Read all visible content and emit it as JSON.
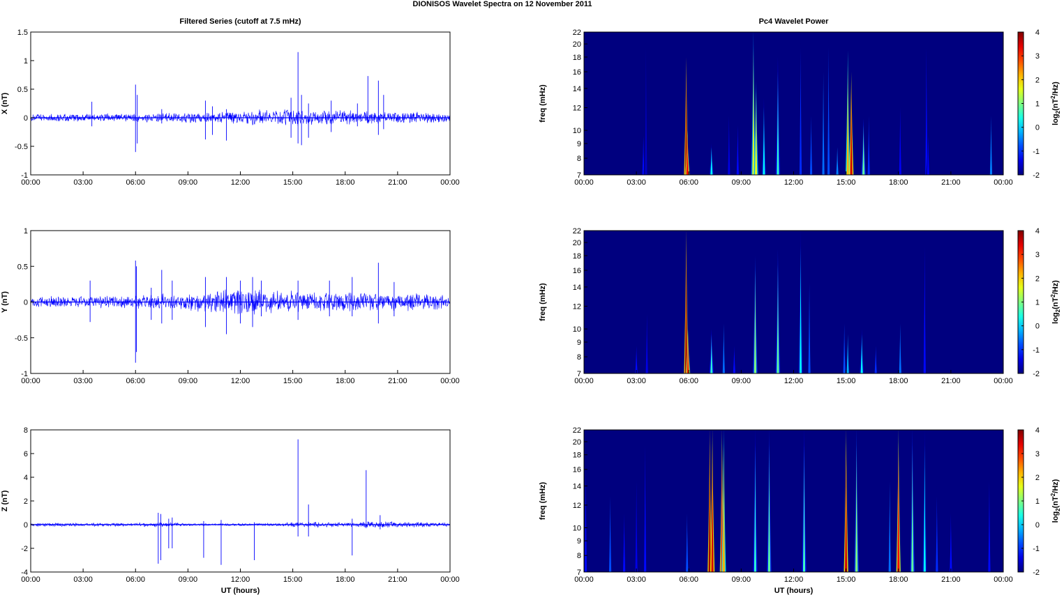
{
  "figure": {
    "title": "DIONISOS Wavelet Spectra on 12 November  2011",
    "left_title": "Filtered Series (cutoff at 7.5 mHz)",
    "right_title": "Pc4 Wavelet Power",
    "xlabel": "UT (hours)"
  },
  "chart_data": [
    {
      "type": "line",
      "panel": "X",
      "ylabel": "X (nT)",
      "xlim_hours": [
        0,
        24
      ],
      "ylim": [
        -1,
        1.5
      ],
      "yticks": [
        -1,
        -0.5,
        0,
        0.5,
        1,
        1.5
      ],
      "yticklabels": [
        "-1",
        "-0.5",
        "0",
        "0.5",
        "1",
        "1.5"
      ],
      "xticklabels": [
        "00:00",
        "03:00",
        "06:00",
        "09:00",
        "12:00",
        "15:00",
        "18:00",
        "21:00",
        "00:00"
      ],
      "series_color": "#0000ff",
      "noise_envelope": [
        [
          0,
          0.06
        ],
        [
          5.5,
          0.07
        ],
        [
          10,
          0.09
        ],
        [
          12,
          0.12
        ],
        [
          15,
          0.14
        ],
        [
          16,
          0.12
        ],
        [
          18,
          0.12
        ],
        [
          20,
          0.1
        ],
        [
          24,
          0.08
        ]
      ],
      "spikes": [
        [
          3.5,
          0.28,
          -0.15
        ],
        [
          6.0,
          0.58,
          -0.6
        ],
        [
          6.1,
          0.4,
          -0.45
        ],
        [
          7.5,
          0.15,
          -0.1
        ],
        [
          10.0,
          0.3,
          -0.38
        ],
        [
          10.4,
          0.2,
          -0.3
        ],
        [
          11.2,
          0.15,
          -0.4
        ],
        [
          14.9,
          0.35,
          -0.35
        ],
        [
          15.3,
          1.15,
          -0.45
        ],
        [
          15.5,
          0.4,
          -0.48
        ],
        [
          15.9,
          0.25,
          -0.35
        ],
        [
          17.2,
          0.3,
          -0.25
        ],
        [
          18.7,
          0.25,
          -0.15
        ],
        [
          19.3,
          0.73,
          -0.1
        ],
        [
          19.9,
          0.65,
          -0.3
        ],
        [
          20.2,
          0.4,
          -0.2
        ]
      ]
    },
    {
      "type": "line",
      "panel": "Y",
      "ylabel": "Y (nT)",
      "xlim_hours": [
        0,
        24
      ],
      "ylim": [
        -1,
        1
      ],
      "yticks": [
        -1,
        -0.5,
        0,
        0.5,
        1
      ],
      "yticklabels": [
        "-1",
        "-0.5",
        "0",
        "0.5",
        "1"
      ],
      "xticklabels": [
        "00:00",
        "03:00",
        "06:00",
        "09:00",
        "12:00",
        "15:00",
        "18:00",
        "21:00",
        "00:00"
      ],
      "series_color": "#0000ff",
      "noise_envelope": [
        [
          0,
          0.07
        ],
        [
          5.5,
          0.08
        ],
        [
          10,
          0.13
        ],
        [
          12,
          0.18
        ],
        [
          14,
          0.14
        ],
        [
          18,
          0.13
        ],
        [
          20,
          0.12
        ],
        [
          24,
          0.09
        ]
      ],
      "spikes": [
        [
          3.4,
          0.3,
          -0.28
        ],
        [
          6.0,
          0.58,
          -0.85
        ],
        [
          6.05,
          0.5,
          -0.7
        ],
        [
          6.9,
          0.2,
          -0.25
        ],
        [
          7.5,
          0.45,
          -0.3
        ],
        [
          8.1,
          0.3,
          -0.25
        ],
        [
          10.0,
          0.35,
          -0.35
        ],
        [
          11.2,
          0.35,
          -0.45
        ],
        [
          12.0,
          0.3,
          -0.3
        ],
        [
          12.7,
          0.35,
          -0.35
        ],
        [
          13.2,
          0.3,
          -0.2
        ],
        [
          15.3,
          0.3,
          -0.25
        ],
        [
          17.1,
          0.3,
          -0.2
        ],
        [
          18.4,
          0.35,
          -0.2
        ],
        [
          19.9,
          0.55,
          -0.3
        ],
        [
          20.8,
          0.28,
          -0.2
        ]
      ]
    },
    {
      "type": "line",
      "panel": "Z",
      "ylabel": "Z (nT)",
      "xlim_hours": [
        0,
        24
      ],
      "ylim": [
        -4,
        8
      ],
      "yticks": [
        -4,
        -2,
        0,
        2,
        4,
        6,
        8
      ],
      "yticklabels": [
        "-4",
        "-2",
        "0",
        "2",
        "4",
        "6",
        "8"
      ],
      "xticklabels": [
        "00:00",
        "03:00",
        "06:00",
        "09:00",
        "12:00",
        "15:00",
        "18:00",
        "21:00",
        "00:00"
      ],
      "series_color": "#0000ff",
      "noise_envelope": [
        [
          0,
          0.15
        ],
        [
          6,
          0.12
        ],
        [
          7.3,
          0.2
        ],
        [
          9,
          0.1
        ],
        [
          14,
          0.1
        ],
        [
          15,
          0.2
        ],
        [
          18,
          0.2
        ],
        [
          20,
          0.25
        ],
        [
          24,
          0.15
        ]
      ],
      "spikes": [
        [
          7.3,
          1.0,
          -3.3
        ],
        [
          7.45,
          0.9,
          -3.0
        ],
        [
          7.9,
          0.5,
          -2.0
        ],
        [
          8.1,
          0.6,
          -2.0
        ],
        [
          9.9,
          0.3,
          -2.8
        ],
        [
          10.9,
          0.4,
          -3.4
        ],
        [
          12.8,
          0.2,
          -3.0
        ],
        [
          15.3,
          7.2,
          -1.0
        ],
        [
          15.9,
          1.7,
          -1.0
        ],
        [
          18.4,
          0.5,
          -2.6
        ],
        [
          19.2,
          4.6,
          -0.3
        ],
        [
          20.0,
          0.8,
          -0.4
        ]
      ]
    },
    {
      "type": "heatmap",
      "panel": "Pc4 wavelet power X",
      "ylabel": "freq (mHz)",
      "colorbar_label": "log2(nT2/Hz)",
      "colormap": "jet",
      "clim": [
        -2,
        4
      ],
      "cticks": [
        "-2",
        "-1",
        "0",
        "1",
        "2",
        "3",
        "4"
      ],
      "ylim_mhz": [
        7,
        22
      ],
      "yticks_mhz": [
        7,
        8,
        9,
        10,
        12,
        14,
        16,
        18,
        20,
        22
      ],
      "yticklabels": [
        "7",
        "8",
        "9",
        "10",
        "12",
        "14",
        "16",
        "18",
        "20",
        "22"
      ],
      "xticklabels": [
        "00:00",
        "03:00",
        "06:00",
        "09:00",
        "12:00",
        "15:00",
        "18:00",
        "21:00",
        "00:00"
      ],
      "background_color": "#00007f",
      "bursts": [
        [
          3.4,
          10,
          -1.2
        ],
        [
          3.55,
          22,
          -1.6
        ],
        [
          5.85,
          18,
          3.8
        ],
        [
          5.92,
          10,
          3.2
        ],
        [
          7.3,
          9,
          0.2
        ],
        [
          8.3,
          12,
          -1.4
        ],
        [
          8.8,
          11,
          -1.2
        ],
        [
          9.7,
          22,
          1.5
        ],
        [
          9.85,
          15,
          1.6
        ],
        [
          10.3,
          13,
          0.2
        ],
        [
          11.1,
          18,
          0.5
        ],
        [
          12.4,
          22,
          -1.0
        ],
        [
          13.0,
          12,
          -0.8
        ],
        [
          13.7,
          18,
          -0.6
        ],
        [
          14.0,
          22,
          -0.8
        ],
        [
          14.5,
          9,
          -0.5
        ],
        [
          15.1,
          19,
          2.2
        ],
        [
          15.3,
          16,
          3.5
        ],
        [
          16.0,
          11,
          0.8
        ],
        [
          16.3,
          12,
          -1.0
        ],
        [
          18.1,
          13,
          -1.3
        ],
        [
          19.6,
          22,
          -1.2
        ],
        [
          19.7,
          10,
          -1.3
        ],
        [
          23.3,
          12,
          -0.5
        ]
      ]
    },
    {
      "type": "heatmap",
      "panel": "Pc4 wavelet power Y",
      "ylabel": "freq (mHz)",
      "colorbar_label": "log2(nT2/Hz)",
      "colormap": "jet",
      "clim": [
        -2,
        4
      ],
      "cticks": [
        "-2",
        "-1",
        "0",
        "1",
        "2",
        "3",
        "4"
      ],
      "ylim_mhz": [
        7,
        22
      ],
      "yticks_mhz": [
        7,
        8,
        9,
        10,
        12,
        14,
        16,
        18,
        20,
        22
      ],
      "yticklabels": [
        "7",
        "8",
        "9",
        "10",
        "12",
        "14",
        "16",
        "18",
        "20",
        "22"
      ],
      "xticklabels": [
        "00:00",
        "03:00",
        "06:00",
        "09:00",
        "12:00",
        "15:00",
        "18:00",
        "21:00",
        "00:00"
      ],
      "background_color": "#00007f",
      "bursts": [
        [
          3.0,
          9,
          -1.2
        ],
        [
          3.6,
          12,
          -1.4
        ],
        [
          5.85,
          22,
          3.8
        ],
        [
          5.95,
          10,
          3.0
        ],
        [
          7.3,
          10,
          0.5
        ],
        [
          8.0,
          11,
          -0.6
        ],
        [
          8.6,
          9,
          -1.2
        ],
        [
          9.8,
          18,
          1.0
        ],
        [
          11.1,
          19,
          0.8
        ],
        [
          12.4,
          22,
          0.2
        ],
        [
          12.9,
          16,
          -0.8
        ],
        [
          14.9,
          11,
          -0.8
        ],
        [
          15.1,
          10,
          -0.2
        ],
        [
          15.9,
          10,
          0.2
        ],
        [
          16.7,
          9,
          -1.0
        ],
        [
          18.1,
          11,
          -0.6
        ],
        [
          19.5,
          22,
          -1.2
        ]
      ]
    },
    {
      "type": "heatmap",
      "panel": "Pc4 wavelet power Z",
      "ylabel": "freq (mHz)",
      "colorbar_label": "log2(nT2/Hz)",
      "colormap": "jet",
      "clim": [
        -2,
        4
      ],
      "cticks": [
        "-2",
        "-1",
        "0",
        "1",
        "2",
        "3",
        "4"
      ],
      "ylim_mhz": [
        7,
        22
      ],
      "yticks_mhz": [
        7,
        8,
        9,
        10,
        12,
        14,
        16,
        18,
        20,
        22
      ],
      "yticklabels": [
        "7",
        "8",
        "9",
        "10",
        "12",
        "14",
        "16",
        "18",
        "20",
        "22"
      ],
      "xticklabels": [
        "00:00",
        "03:00",
        "06:00",
        "09:00",
        "12:00",
        "15:00",
        "18:00",
        "21:00",
        "00:00"
      ],
      "background_color": "#00007f",
      "bursts": [
        [
          0.1,
          18,
          -1.2
        ],
        [
          1.5,
          14,
          -0.8
        ],
        [
          2.3,
          12,
          -1.2
        ],
        [
          3.0,
          16,
          -1.4
        ],
        [
          3.5,
          22,
          -1.2
        ],
        [
          5.9,
          12,
          -0.8
        ],
        [
          7.2,
          22,
          3.8
        ],
        [
          7.35,
          22,
          3.5
        ],
        [
          7.9,
          22,
          3.2
        ],
        [
          8.0,
          22,
          2.2
        ],
        [
          9.8,
          22,
          0.5
        ],
        [
          10.6,
          22,
          0.8
        ],
        [
          12.6,
          22,
          0.6
        ],
        [
          15.0,
          22,
          3.5
        ],
        [
          15.6,
          22,
          1.0
        ],
        [
          17.5,
          16,
          -0.6
        ],
        [
          18.0,
          22,
          3.2
        ],
        [
          18.8,
          22,
          0.8
        ],
        [
          19.5,
          22,
          0.2
        ],
        [
          20.2,
          14,
          -1.0
        ],
        [
          21.0,
          12,
          -1.2
        ],
        [
          23.2,
          16,
          -1.2
        ]
      ]
    }
  ]
}
